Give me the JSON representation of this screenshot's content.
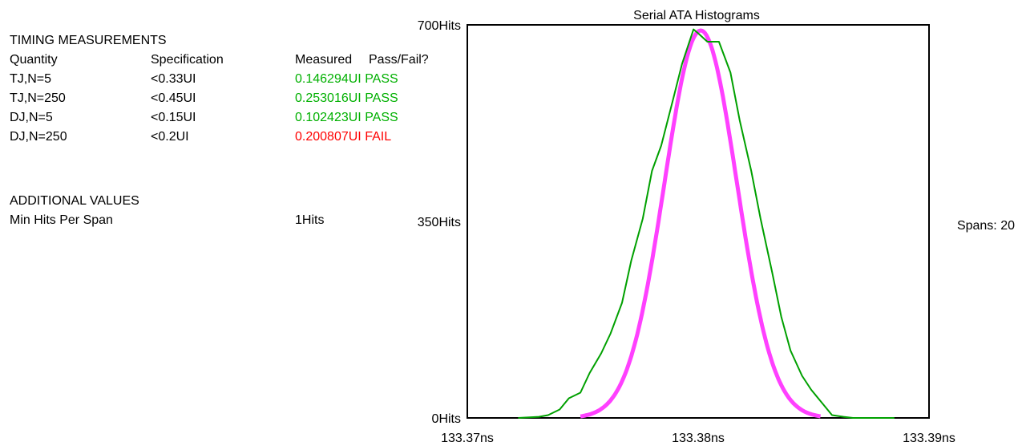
{
  "timing": {
    "title": "TIMING MEASUREMENTS",
    "headers": {
      "quantity": "Quantity",
      "specification": "Specification",
      "measured": "Measured",
      "pass_fail": "Pass/Fail?"
    },
    "rows": [
      {
        "quantity": "TJ,N=5",
        "specification": "<0.33UI",
        "measured": "0.146294UI",
        "result": "PASS"
      },
      {
        "quantity": "TJ,N=250",
        "specification": "<0.45UI",
        "measured": "0.253016UI",
        "result": "PASS"
      },
      {
        "quantity": "DJ,N=5",
        "specification": "<0.15UI",
        "measured": "0.102423UI",
        "result": "PASS"
      },
      {
        "quantity": "DJ,N=250",
        "specification": "<0.2UI",
        "measured": "0.200807UI",
        "result": "FAIL"
      }
    ]
  },
  "additional": {
    "title": "ADDITIONAL VALUES",
    "rows": [
      {
        "label": "Min Hits Per Span",
        "value": "1Hits"
      }
    ]
  },
  "colors": {
    "pass": "#00b000",
    "fail": "#ff0000",
    "histogram": "#00a000",
    "fit": "#ff40ff"
  },
  "chart_data": {
    "type": "line",
    "title": "Serial ATA Histograms",
    "side_label": "Spans: 20",
    "xlim": [
      133.37,
      133.39
    ],
    "ylim": [
      0,
      700
    ],
    "x_ticks": [
      133.37,
      133.38,
      133.39
    ],
    "x_tick_labels": [
      "133.37ns",
      "133.38ns",
      "133.39ns"
    ],
    "y_ticks": [
      0,
      350,
      700
    ],
    "y_tick_labels": [
      "0Hits",
      "350Hits",
      "700Hits"
    ],
    "grid": false,
    "series": [
      {
        "role": "histogram",
        "color": "#00a000",
        "x": [
          133.3722,
          133.3731,
          133.3735,
          133.374,
          133.3744,
          133.3749,
          133.3753,
          133.3758,
          133.3762,
          133.3767,
          133.3771,
          133.3776,
          133.378,
          133.3784,
          133.3789,
          133.3793,
          133.3798,
          133.38,
          133.3804,
          133.3809,
          133.3814,
          133.3818,
          133.3823,
          133.3827,
          133.3832,
          133.3836,
          133.384,
          133.3845,
          133.3849,
          133.3854,
          133.3858,
          133.3863,
          133.3867,
          133.3872,
          133.3876,
          133.388,
          133.3885
        ],
        "y": [
          0,
          2,
          5,
          15,
          35,
          45,
          80,
          115,
          150,
          205,
          280,
          355,
          440,
          485,
          565,
          630,
          692,
          685,
          670,
          670,
          615,
          530,
          440,
          355,
          260,
          180,
          120,
          75,
          50,
          25,
          5,
          2,
          0,
          0,
          0,
          0,
          0
        ]
      },
      {
        "role": "fit",
        "color": "#ff40ff",
        "mean": 133.38011,
        "sigma": 0.00157,
        "peak": 690,
        "x_range": [
          133.3749,
          133.3853
        ]
      }
    ]
  }
}
